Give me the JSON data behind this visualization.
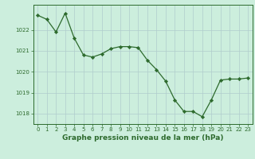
{
  "x": [
    0,
    1,
    2,
    3,
    4,
    5,
    6,
    7,
    8,
    9,
    10,
    11,
    12,
    13,
    14,
    15,
    16,
    17,
    18,
    19,
    20,
    21,
    22,
    23
  ],
  "y": [
    1022.7,
    1022.5,
    1021.9,
    1022.8,
    1021.6,
    1020.8,
    1020.7,
    1020.85,
    1021.1,
    1021.2,
    1021.2,
    1021.15,
    1020.55,
    1020.1,
    1019.55,
    1018.65,
    1018.1,
    1018.1,
    1017.85,
    1018.65,
    1019.6,
    1019.65,
    1019.65,
    1019.7
  ],
  "line_color": "#2d6a2d",
  "marker_color": "#2d6a2d",
  "bg_color": "#cceedd",
  "grid_color": "#b0cccc",
  "axis_color": "#2d6a2d",
  "label_color": "#2d6a2d",
  "xlabel": "Graphe pression niveau de la mer (hPa)",
  "ylim_min": 1017.5,
  "ylim_max": 1023.2,
  "yticks": [
    1018,
    1019,
    1020,
    1021,
    1022
  ],
  "xticks": [
    0,
    1,
    2,
    3,
    4,
    5,
    6,
    7,
    8,
    9,
    10,
    11,
    12,
    13,
    14,
    15,
    16,
    17,
    18,
    19,
    20,
    21,
    22,
    23
  ],
  "tick_fontsize": 5.0,
  "xlabel_fontsize": 6.5,
  "marker_size": 2.2,
  "line_width": 0.9
}
